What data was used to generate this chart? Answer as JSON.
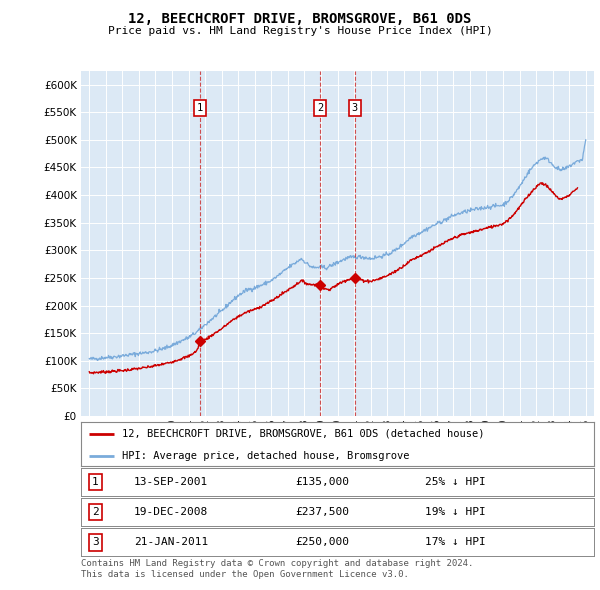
{
  "title": "12, BEECHCROFT DRIVE, BROMSGROVE, B61 0DS",
  "subtitle": "Price paid vs. HM Land Registry's House Price Index (HPI)",
  "plot_bg_color": "#dce9f5",
  "red_line_color": "#cc0000",
  "blue_line_color": "#7aabdb",
  "transactions": [
    {
      "num": 1,
      "date_str": "13-SEP-2001",
      "date_x": 2001.71,
      "price": 135000
    },
    {
      "num": 2,
      "date_str": "19-DEC-2008",
      "date_x": 2008.97,
      "price": 237500
    },
    {
      "num": 3,
      "date_str": "21-JAN-2011",
      "date_x": 2011.05,
      "price": 250000
    }
  ],
  "legend_red_label": "12, BEECHCROFT DRIVE, BROMSGROVE, B61 0DS (detached house)",
  "legend_blue_label": "HPI: Average price, detached house, Bromsgrove",
  "table_rows": [
    [
      "1",
      "13-SEP-2001",
      "£135,000",
      "25% ↓ HPI"
    ],
    [
      "2",
      "19-DEC-2008",
      "£237,500",
      "19% ↓ HPI"
    ],
    [
      "3",
      "21-JAN-2011",
      "£250,000",
      "17% ↓ HPI"
    ]
  ],
  "footer": "Contains HM Land Registry data © Crown copyright and database right 2024.\nThis data is licensed under the Open Government Licence v3.0.",
  "ylim": [
    0,
    620000
  ],
  "yticks": [
    0,
    50000,
    100000,
    150000,
    200000,
    250000,
    300000,
    350000,
    400000,
    450000,
    500000,
    550000,
    600000
  ],
  "xlim": [
    1994.5,
    2025.5
  ],
  "xticks": [
    1995,
    1996,
    1997,
    1998,
    1999,
    2000,
    2001,
    2002,
    2003,
    2004,
    2005,
    2006,
    2007,
    2008,
    2009,
    2010,
    2011,
    2012,
    2013,
    2014,
    2015,
    2016,
    2017,
    2018,
    2019,
    2020,
    2021,
    2022,
    2023,
    2024,
    2025
  ],
  "hpi_anchors": [
    [
      1995.0,
      103000
    ],
    [
      1995.5,
      104000
    ],
    [
      1996.0,
      106000
    ],
    [
      1996.5,
      107000
    ],
    [
      1997.0,
      109000
    ],
    [
      1997.5,
      111000
    ],
    [
      1998.0,
      113000
    ],
    [
      1998.5,
      115000
    ],
    [
      1999.0,
      118000
    ],
    [
      1999.5,
      122000
    ],
    [
      2000.0,
      128000
    ],
    [
      2000.5,
      135000
    ],
    [
      2001.0,
      142000
    ],
    [
      2001.5,
      152000
    ],
    [
      2002.0,
      165000
    ],
    [
      2002.5,
      178000
    ],
    [
      2003.0,
      190000
    ],
    [
      2003.5,
      205000
    ],
    [
      2004.0,
      218000
    ],
    [
      2004.5,
      228000
    ],
    [
      2005.0,
      232000
    ],
    [
      2005.5,
      238000
    ],
    [
      2006.0,
      245000
    ],
    [
      2006.5,
      256000
    ],
    [
      2007.0,
      268000
    ],
    [
      2007.5,
      278000
    ],
    [
      2007.8,
      285000
    ],
    [
      2008.0,
      280000
    ],
    [
      2008.3,
      272000
    ],
    [
      2008.6,
      268000
    ],
    [
      2009.0,
      270000
    ],
    [
      2009.3,
      268000
    ],
    [
      2009.6,
      272000
    ],
    [
      2010.0,
      278000
    ],
    [
      2010.5,
      285000
    ],
    [
      2011.0,
      288000
    ],
    [
      2011.5,
      288000
    ],
    [
      2012.0,
      285000
    ],
    [
      2012.5,
      288000
    ],
    [
      2013.0,
      292000
    ],
    [
      2013.5,
      300000
    ],
    [
      2014.0,
      312000
    ],
    [
      2014.5,
      325000
    ],
    [
      2015.0,
      332000
    ],
    [
      2015.5,
      340000
    ],
    [
      2016.0,
      348000
    ],
    [
      2016.5,
      355000
    ],
    [
      2017.0,
      363000
    ],
    [
      2017.5,
      368000
    ],
    [
      2018.0,
      372000
    ],
    [
      2018.5,
      375000
    ],
    [
      2019.0,
      378000
    ],
    [
      2019.5,
      380000
    ],
    [
      2020.0,
      382000
    ],
    [
      2020.5,
      395000
    ],
    [
      2021.0,
      415000
    ],
    [
      2021.5,
      440000
    ],
    [
      2022.0,
      458000
    ],
    [
      2022.3,
      465000
    ],
    [
      2022.5,
      468000
    ],
    [
      2022.8,
      462000
    ],
    [
      2023.0,
      455000
    ],
    [
      2023.3,
      448000
    ],
    [
      2023.5,
      445000
    ],
    [
      2023.8,
      448000
    ],
    [
      2024.0,
      452000
    ],
    [
      2024.3,
      458000
    ],
    [
      2024.6,
      462000
    ],
    [
      2024.8,
      465000
    ],
    [
      2025.0,
      500000
    ]
  ],
  "price_anchors": [
    [
      1995.0,
      78000
    ],
    [
      1995.5,
      79000
    ],
    [
      1996.0,
      80000
    ],
    [
      1996.5,
      81000
    ],
    [
      1997.0,
      82000
    ],
    [
      1997.5,
      84000
    ],
    [
      1998.0,
      86000
    ],
    [
      1998.5,
      88000
    ],
    [
      1999.0,
      91000
    ],
    [
      1999.5,
      94000
    ],
    [
      2000.0,
      98000
    ],
    [
      2000.5,
      103000
    ],
    [
      2001.0,
      108000
    ],
    [
      2001.5,
      118000
    ],
    [
      2001.71,
      135000
    ],
    [
      2002.0,
      138000
    ],
    [
      2002.5,
      148000
    ],
    [
      2003.0,
      158000
    ],
    [
      2003.5,
      170000
    ],
    [
      2004.0,
      180000
    ],
    [
      2004.5,
      188000
    ],
    [
      2005.0,
      193000
    ],
    [
      2005.5,
      200000
    ],
    [
      2006.0,
      208000
    ],
    [
      2006.5,
      218000
    ],
    [
      2007.0,
      228000
    ],
    [
      2007.5,
      238000
    ],
    [
      2007.8,
      245000
    ],
    [
      2008.0,
      242000
    ],
    [
      2008.3,
      238000
    ],
    [
      2008.6,
      238000
    ],
    [
      2008.97,
      237500
    ],
    [
      2009.0,
      237000
    ],
    [
      2009.3,
      230000
    ],
    [
      2009.5,
      228000
    ],
    [
      2009.7,
      232000
    ],
    [
      2010.0,
      238000
    ],
    [
      2010.3,
      243000
    ],
    [
      2010.6,
      247000
    ],
    [
      2011.0,
      250000
    ],
    [
      2011.05,
      250000
    ],
    [
      2011.3,
      248000
    ],
    [
      2011.6,
      245000
    ],
    [
      2012.0,
      244000
    ],
    [
      2012.5,
      248000
    ],
    [
      2013.0,
      254000
    ],
    [
      2013.5,
      262000
    ],
    [
      2014.0,
      272000
    ],
    [
      2014.5,
      283000
    ],
    [
      2015.0,
      290000
    ],
    [
      2015.5,
      298000
    ],
    [
      2016.0,
      306000
    ],
    [
      2016.5,
      314000
    ],
    [
      2017.0,
      322000
    ],
    [
      2017.5,
      328000
    ],
    [
      2018.0,
      332000
    ],
    [
      2018.5,
      336000
    ],
    [
      2019.0,
      340000
    ],
    [
      2019.5,
      344000
    ],
    [
      2020.0,
      348000
    ],
    [
      2020.5,
      360000
    ],
    [
      2021.0,
      378000
    ],
    [
      2021.5,
      398000
    ],
    [
      2022.0,
      415000
    ],
    [
      2022.3,
      422000
    ],
    [
      2022.5,
      420000
    ],
    [
      2022.8,
      412000
    ],
    [
      2023.0,
      405000
    ],
    [
      2023.3,
      395000
    ],
    [
      2023.5,
      393000
    ],
    [
      2023.8,
      396000
    ],
    [
      2024.0,
      400000
    ],
    [
      2024.3,
      408000
    ],
    [
      2024.5,
      412000
    ]
  ]
}
